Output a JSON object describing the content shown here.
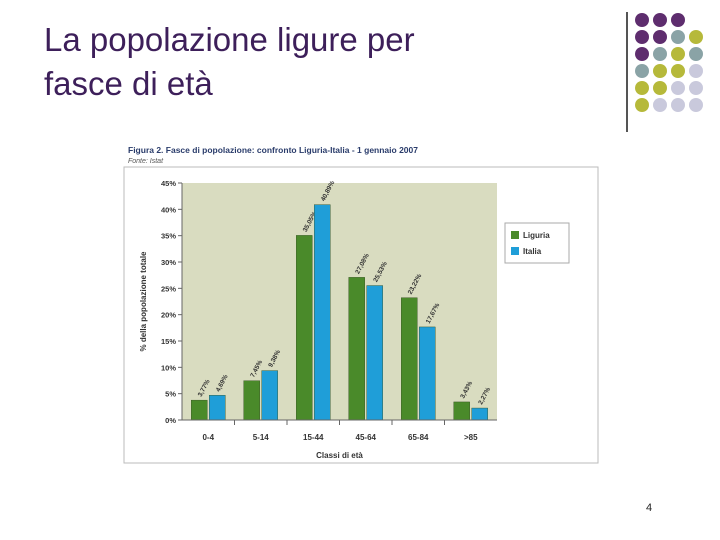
{
  "slide": {
    "title_line1": "La popolazione ligure per",
    "title_line2": "fasce di età",
    "page_number": "4"
  },
  "colors": {
    "title": "#3d1f5a",
    "dot_purple": "#5e2d6e",
    "dot_teal": "#8aa3a6",
    "dot_olive": "#b6b93a",
    "dot_lilac": "#c9c9dc",
    "plot_background": "#d9dcc0",
    "liguria": "#4a8a2a",
    "italia": "#1f9ed8"
  },
  "chart_data": {
    "type": "bar",
    "title": "Figura 2. Fasce di popolazione: confronto Liguria-Italia - 1 gennaio 2007",
    "source": "Fonte: Istat",
    "xlabel": "Classi di età",
    "ylabel": "% della popolazione totale",
    "ylim": [
      0,
      45
    ],
    "yticks": [
      "0%",
      "5%",
      "10%",
      "15%",
      "20%",
      "25%",
      "30%",
      "35%",
      "40%",
      "45%"
    ],
    "grid": false,
    "legend_position": "right",
    "categories": [
      "0-4",
      "5-14",
      "15-44",
      "45-64",
      "65-84",
      ">85"
    ],
    "series": [
      {
        "name": "Liguria",
        "values": [
          3.77,
          7.45,
          35.05,
          27.08,
          23.22,
          3.43
        ],
        "labels": [
          "3,77%",
          "7,45%",
          "35,05%",
          "27,08%",
          "23,22%",
          "3,43%"
        ]
      },
      {
        "name": "Italia",
        "values": [
          4.69,
          9.38,
          40.89,
          25.53,
          17.67,
          2.27
        ],
        "labels": [
          "4,69%",
          "9,38%",
          "40,89%",
          "25,53%",
          "17,67%",
          "2,27%"
        ]
      }
    ]
  }
}
